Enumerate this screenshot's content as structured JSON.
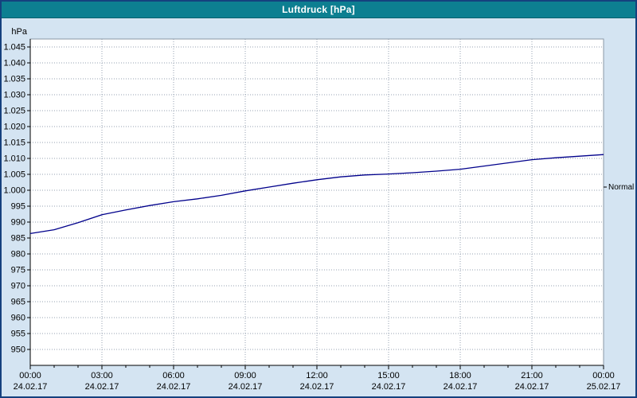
{
  "window": {
    "title": "Luftdruck [hPa]"
  },
  "colors": {
    "titlebar": "#0d7f91",
    "window_background": "#d4e4f2",
    "plot_background": "#ffffff",
    "grid": "#96a2b2",
    "series_line": "#00008b",
    "window_border": "#15417e"
  },
  "chart_data": {
    "type": "line",
    "title": "Luftdruck [hPa]",
    "ylabel": "hPa",
    "y_axis": {
      "unit": "hPa",
      "min": 950,
      "max": 1045,
      "step": 5,
      "plot_min": 945,
      "plot_max": 1047.5,
      "label_format": "german-thousands-dot"
    },
    "x_axis": {
      "hours_span": 24,
      "major_step_hours": 3,
      "minor_step_hours": 1,
      "ticks": [
        {
          "time": "00:00",
          "date": "24.02.17"
        },
        {
          "time": "03:00",
          "date": "24.02.17"
        },
        {
          "time": "06:00",
          "date": "24.02.17"
        },
        {
          "time": "09:00",
          "date": "24.02.17"
        },
        {
          "time": "12:00",
          "date": "24.02.17"
        },
        {
          "time": "15:00",
          "date": "24.02.17"
        },
        {
          "time": "18:00",
          "date": "24.02.17"
        },
        {
          "time": "21:00",
          "date": "24.02.17"
        },
        {
          "time": "00:00",
          "date": "25.02.17"
        }
      ]
    },
    "series": [
      {
        "name": "Luftdruck",
        "color": "#00008b",
        "x_hours": [
          0,
          1,
          2,
          3,
          4,
          5,
          6,
          7,
          8,
          9,
          10,
          11,
          12,
          13,
          14,
          15,
          16,
          17,
          18,
          19,
          20,
          21,
          22,
          23,
          24
        ],
        "values": [
          986.4,
          987.6,
          989.8,
          992.3,
          993.8,
          995.2,
          996.4,
          997.3,
          998.4,
          999.8,
          1001.0,
          1002.2,
          1003.3,
          1004.2,
          1004.8,
          1005.1,
          1005.5,
          1006.0,
          1006.6,
          1007.6,
          1008.6,
          1009.6,
          1010.2,
          1010.7,
          1011.2
        ]
      }
    ],
    "annotations": [
      {
        "label": "Normal",
        "value": 1001
      }
    ]
  }
}
